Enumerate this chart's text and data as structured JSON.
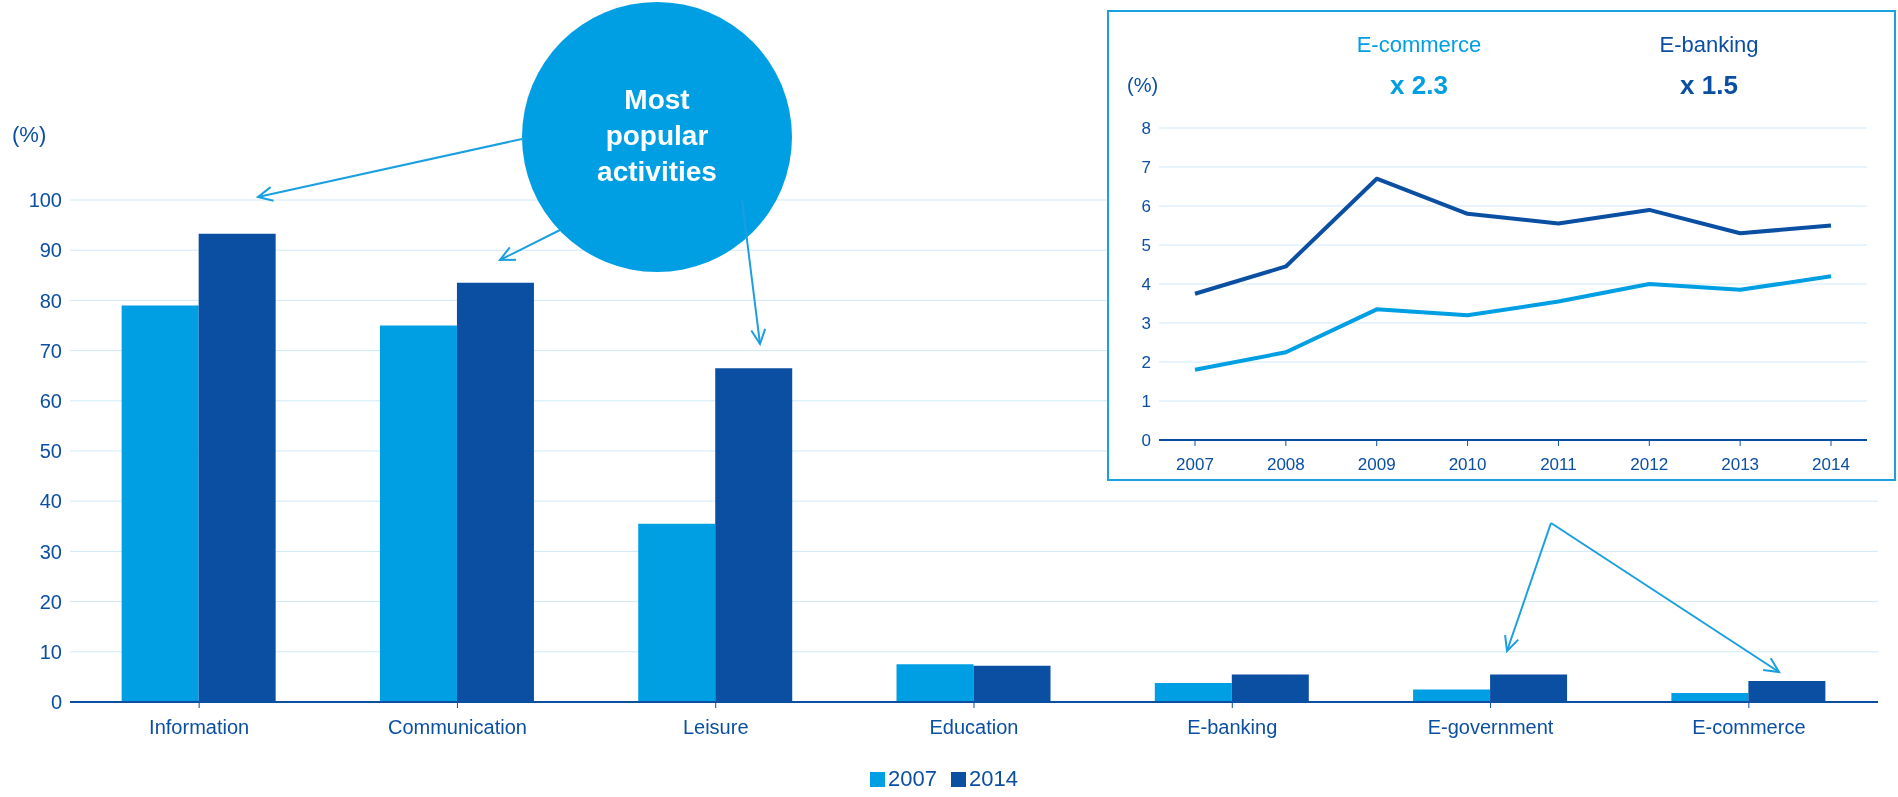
{
  "chart_data": [
    {
      "type": "bar",
      "ylabel": "(%)",
      "categories": [
        "Information",
        "Communication",
        "Leisure",
        "Education",
        "E-banking",
        "E-government",
        "E-commerce"
      ],
      "series": [
        {
          "name": "2007",
          "color": "#009fe3",
          "values": [
            79,
            75,
            35.5,
            7.5,
            3.8,
            2.5,
            1.8
          ]
        },
        {
          "name": "2014",
          "color": "#0b4fa3",
          "values": [
            93.3,
            83.5,
            66.5,
            7.2,
            5.5,
            5.5,
            4.2
          ]
        }
      ],
      "ylim": [
        0,
        100
      ],
      "yticks": [
        0,
        10,
        20,
        30,
        40,
        50,
        60,
        70,
        80,
        90,
        100
      ],
      "grid": "y",
      "legend": "bottom",
      "annotations": [
        "Most popular activities"
      ]
    },
    {
      "type": "line",
      "ylabel": "(%)",
      "categories": [
        "2007",
        "2008",
        "2009",
        "2010",
        "2011",
        "2012",
        "2013",
        "2014"
      ],
      "series": [
        {
          "name": "E-commerce",
          "color": "#009fe3",
          "values": [
            1.8,
            2.25,
            3.35,
            3.2,
            3.55,
            4.0,
            3.85,
            4.2
          ]
        },
        {
          "name": "E-banking",
          "color": "#0b4fa3",
          "values": [
            3.75,
            4.45,
            6.7,
            5.8,
            5.55,
            5.9,
            5.3,
            5.5
          ]
        }
      ],
      "ylim": [
        0,
        8
      ],
      "yticks": [
        0,
        1,
        2,
        3,
        4,
        5,
        6,
        7,
        8
      ],
      "grid": "y",
      "legend": "top",
      "annotations": [
        "x 2.3",
        "x 1.5"
      ]
    }
  ]
}
